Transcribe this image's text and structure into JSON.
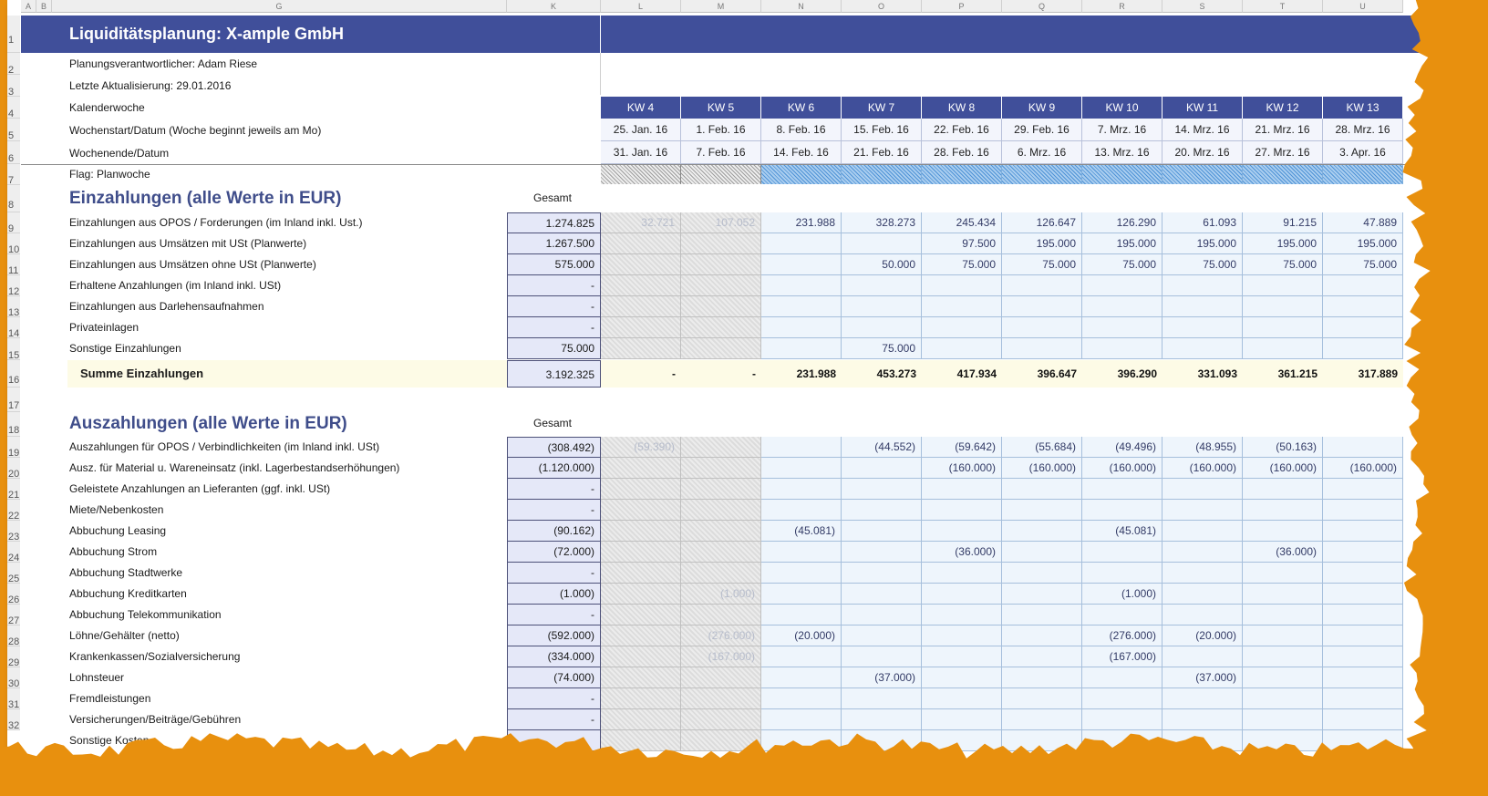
{
  "sheet": {
    "column_letters": [
      "A",
      "B",
      "G",
      "K",
      "L",
      "M",
      "N",
      "O",
      "P",
      "Q",
      "R",
      "S",
      "T",
      "U"
    ],
    "row_numbers": [
      "1",
      "2",
      "3",
      "4",
      "5",
      "6",
      "7",
      "8",
      "9",
      "10",
      "11",
      "12",
      "13",
      "14",
      "15",
      "16",
      "17",
      "18",
      "19",
      "20",
      "21",
      "22",
      "23",
      "24",
      "25",
      "26",
      "27",
      "28",
      "29",
      "30",
      "31",
      "32"
    ]
  },
  "title": "Liquiditätsplanung: X-ample GmbH",
  "meta": {
    "responsible": "Planungsverantwortlicher: Adam Riese",
    "last_update": "Letzte Aktualisierung: 29.01.2016",
    "calendar_week_label": "Kalenderwoche",
    "week_start_label": "Wochenstart/Datum  (Woche beginnt jeweils am Mo)",
    "week_end_label": "Wochenende/Datum",
    "flag_label": "Flag: Planwoche"
  },
  "weeks": {
    "kw": [
      "KW 4",
      "KW 5",
      "KW 6",
      "KW 7",
      "KW 8",
      "KW 9",
      "KW 10",
      "KW 11",
      "KW 12",
      "KW 13"
    ],
    "start": [
      "25. Jan. 16",
      "1. Feb. 16",
      "8. Feb. 16",
      "15. Feb. 16",
      "22. Feb. 16",
      "29. Feb. 16",
      "7. Mrz. 16",
      "14. Mrz. 16",
      "21. Mrz. 16",
      "28. Mrz. 16"
    ],
    "end": [
      "31. Jan. 16",
      "7. Feb. 16",
      "14. Feb. 16",
      "21. Feb. 16",
      "28. Feb. 16",
      "6. Mrz. 16",
      "13. Mrz. 16",
      "20. Mrz. 16",
      "27. Mrz. 16",
      "3. Apr. 16"
    ]
  },
  "colors": {
    "header_blue": "#404f9a",
    "input_fill": "#eef5fc",
    "section_title": "#3f4d8a",
    "frame": "#e8900e"
  },
  "einzahlungen": {
    "title": "Einzahlungen (alle Werte in EUR)",
    "gesamt_label": "Gesamt",
    "rows": [
      {
        "label": "Einzahlungen aus OPOS / Forderungen (im Inland inkl. Ust.)",
        "total": "1.274.825",
        "past": [
          "32.721",
          "107.052"
        ],
        "values": [
          "231.988",
          "328.273",
          "245.434",
          "126.647",
          "126.290",
          "61.093",
          "91.215",
          "47.889"
        ]
      },
      {
        "label": "Einzahlungen aus Umsätzen mit USt (Planwerte)",
        "total": "1.267.500",
        "past": [
          "",
          ""
        ],
        "values": [
          "",
          "",
          "97.500",
          "195.000",
          "195.000",
          "195.000",
          "195.000",
          "195.000"
        ]
      },
      {
        "label": "Einzahlungen aus Umsätzen ohne USt (Planwerte)",
        "total": "575.000",
        "past": [
          "",
          ""
        ],
        "values": [
          "",
          "50.000",
          "75.000",
          "75.000",
          "75.000",
          "75.000",
          "75.000",
          "75.000"
        ]
      },
      {
        "label": "Erhaltene Anzahlungen (im Inland inkl. USt)",
        "total": "-",
        "past": [
          "",
          ""
        ],
        "values": [
          "",
          "",
          "",
          "",
          "",
          "",
          "",
          ""
        ]
      },
      {
        "label": "Einzahlungen aus Darlehensaufnahmen",
        "total": "-",
        "past": [
          "",
          ""
        ],
        "values": [
          "",
          "",
          "",
          "",
          "",
          "",
          "",
          ""
        ]
      },
      {
        "label": "Privateinlagen",
        "total": "-",
        "past": [
          "",
          ""
        ],
        "values": [
          "",
          "",
          "",
          "",
          "",
          "",
          "",
          ""
        ]
      },
      {
        "label": "Sonstige Einzahlungen",
        "total": "75.000",
        "past": [
          "",
          ""
        ],
        "values": [
          "",
          "75.000",
          "",
          "",
          "",
          "",
          "",
          ""
        ]
      }
    ],
    "sum": {
      "label": "Summe Einzahlungen",
      "total": "3.192.325",
      "values": [
        "-",
        "-",
        "231.988",
        "453.273",
        "417.934",
        "396.647",
        "396.290",
        "331.093",
        "361.215",
        "317.889"
      ]
    }
  },
  "auszahlungen": {
    "title": "Auszahlungen (alle Werte in EUR)",
    "gesamt_label": "Gesamt",
    "rows": [
      {
        "label": "Auszahlungen für OPOS / Verbindlichkeiten (im Inland inkl. USt)",
        "total": "(308.492)",
        "past": [
          "(59.390)",
          ""
        ],
        "values": [
          "",
          "(44.552)",
          "(59.642)",
          "(55.684)",
          "(49.496)",
          "(48.955)",
          "(50.163)",
          ""
        ]
      },
      {
        "label": "Ausz. für Material u. Wareneinsatz (inkl. Lagerbestandserhöhungen)",
        "total": "(1.120.000)",
        "past": [
          "",
          ""
        ],
        "values": [
          "",
          "",
          "(160.000)",
          "(160.000)",
          "(160.000)",
          "(160.000)",
          "(160.000)",
          "(160.000)"
        ]
      },
      {
        "label": "Geleistete Anzahlungen an Lieferanten (ggf. inkl. USt)",
        "total": "-",
        "past": [
          "",
          ""
        ],
        "values": [
          "",
          "",
          "",
          "",
          "",
          "",
          "",
          ""
        ]
      },
      {
        "label": "Miete/Nebenkosten",
        "total": "-",
        "past": [
          "",
          ""
        ],
        "values": [
          "",
          "",
          "",
          "",
          "",
          "",
          "",
          ""
        ]
      },
      {
        "label": "Abbuchung Leasing",
        "total": "(90.162)",
        "past": [
          "",
          ""
        ],
        "values": [
          "(45.081)",
          "",
          "",
          "",
          "(45.081)",
          "",
          "",
          ""
        ]
      },
      {
        "label": "Abbuchung Strom",
        "total": "(72.000)",
        "past": [
          "",
          ""
        ],
        "values": [
          "",
          "",
          "(36.000)",
          "",
          "",
          "",
          "(36.000)",
          ""
        ]
      },
      {
        "label": "Abbuchung Stadtwerke",
        "total": "-",
        "past": [
          "",
          ""
        ],
        "values": [
          "",
          "",
          "",
          "",
          "",
          "",
          "",
          ""
        ]
      },
      {
        "label": "Abbuchung Kreditkarten",
        "total": "(1.000)",
        "past": [
          "",
          "(1.000)"
        ],
        "values": [
          "",
          "",
          "",
          "",
          "(1.000)",
          "",
          "",
          ""
        ]
      },
      {
        "label": "Abbuchung Telekommunikation",
        "total": "-",
        "past": [
          "",
          ""
        ],
        "values": [
          "",
          "",
          "",
          "",
          "",
          "",
          "",
          ""
        ]
      },
      {
        "label": "Löhne/Gehälter (netto)",
        "total": "(592.000)",
        "past": [
          "",
          "(276.000)"
        ],
        "values": [
          "(20.000)",
          "",
          "",
          "",
          "(276.000)",
          "(20.000)",
          "",
          ""
        ]
      },
      {
        "label": "Krankenkassen/Sozialversicherung",
        "total": "(334.000)",
        "past": [
          "",
          "(167.000)"
        ],
        "values": [
          "",
          "",
          "",
          "",
          "(167.000)",
          "",
          "",
          ""
        ]
      },
      {
        "label": "Lohnsteuer",
        "total": "(74.000)",
        "past": [
          "",
          ""
        ],
        "values": [
          "",
          "(37.000)",
          "",
          "",
          "",
          "(37.000)",
          "",
          ""
        ]
      },
      {
        "label": "Fremdleistungen",
        "total": "-",
        "past": [
          "",
          ""
        ],
        "values": [
          "",
          "",
          "",
          "",
          "",
          "",
          "",
          ""
        ]
      },
      {
        "label": "Versicherungen/Beiträge/Gebühren",
        "total": "-",
        "past": [
          "",
          ""
        ],
        "values": [
          "",
          "",
          "",
          "",
          "",
          "",
          "",
          ""
        ]
      },
      {
        "label": "Sonstige Kosten",
        "total": "",
        "past": [
          "",
          ""
        ],
        "values": [
          "",
          "",
          "",
          "",
          "",
          "",
          "",
          ""
        ]
      }
    ]
  }
}
